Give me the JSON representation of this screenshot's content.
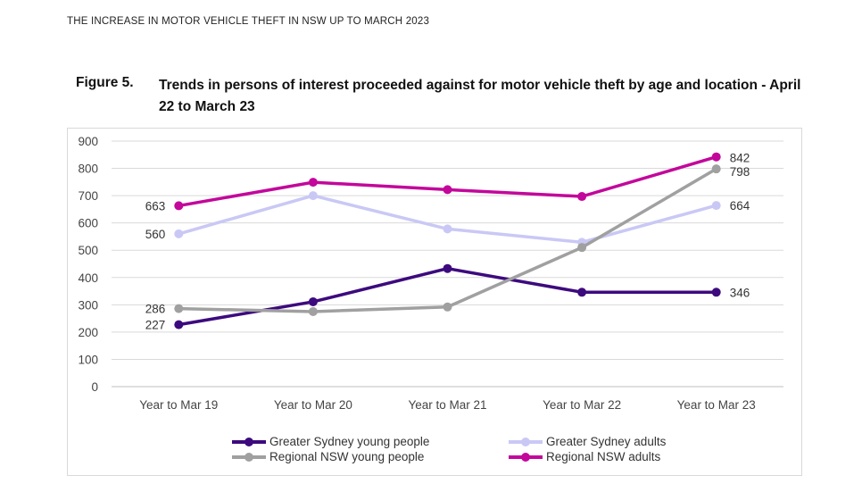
{
  "header": "THE INCREASE IN MOTOR VEHICLE THEFT IN NSW UP TO MARCH 2023",
  "figure": {
    "number": "Figure 5.",
    "title": "Trends in persons of interest proceeded against for motor vehicle theft by age and location - April 22 to March 23"
  },
  "chart_data": {
    "type": "line",
    "categories": [
      "Year to Mar 19",
      "Year to Mar 20",
      "Year to Mar 21",
      "Year to Mar 22",
      "Year to Mar 23"
    ],
    "ylim": [
      0,
      900
    ],
    "yticks": [
      "0",
      "100",
      "200",
      "300",
      "400",
      "500",
      "600",
      "700",
      "800",
      "900"
    ],
    "grid": true,
    "legend_position": "bottom",
    "series": [
      {
        "name": "Greater Sydney young people",
        "color": "#3d0a7e",
        "values": [
          227,
          311,
          433,
          346,
          346
        ],
        "labels": [
          "227",
          "",
          "",
          "",
          "346"
        ]
      },
      {
        "name": "Greater Sydney adults",
        "color": "#c9c8f5",
        "values": [
          560,
          700,
          578,
          529,
          664
        ],
        "labels": [
          "560",
          "",
          "",
          "",
          "664"
        ]
      },
      {
        "name": "Regional NSW young people",
        "color": "#a0a0a0",
        "values": [
          286,
          275,
          292,
          510,
          798
        ],
        "labels": [
          "286",
          "",
          "",
          "",
          "798"
        ]
      },
      {
        "name": "Regional NSW adults",
        "color": "#c3079b",
        "values": [
          663,
          749,
          722,
          697,
          842
        ],
        "labels": [
          "663",
          "",
          "",
          "",
          "842"
        ]
      }
    ]
  }
}
